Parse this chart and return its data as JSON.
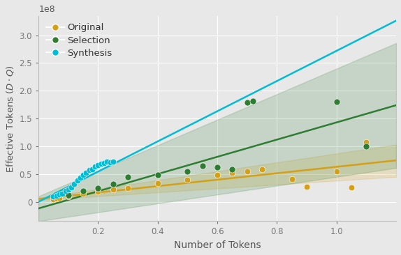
{
  "xlabel": "Number of Tokens",
  "ylabel": "Effective Tokens $(D \\cdot Q)$",
  "xlim": [
    0,
    12000000000.0
  ],
  "ylim": [
    -35000000.0,
    335000000.0
  ],
  "background_color": "#e8e8e8",
  "original_scatter_x": [
    500000000.0,
    600000000.0,
    700000000.0,
    1000000000.0,
    1500000000.0,
    2000000000.0,
    2500000000.0,
    3000000000.0,
    4000000000.0,
    5000000000.0,
    6000000000.0,
    6500000000.0,
    7000000000.0,
    7500000000.0,
    8500000000.0,
    9000000000.0,
    10000000000.0,
    10500000000.0,
    11000000000.0
  ],
  "original_scatter_y": [
    5000000.0,
    6000000.0,
    7000000.0,
    10000000.0,
    14000000.0,
    18000000.0,
    22000000.0,
    24000000.0,
    33000000.0,
    40000000.0,
    48000000.0,
    52000000.0,
    55000000.0,
    58000000.0,
    41000000.0,
    27000000.0,
    55000000.0,
    26000000.0,
    107000000.0
  ],
  "original_color": "#d4a017",
  "original_slope": 0.0058,
  "original_intercept": 5000000.0,
  "original_band_low_slope": 0.0035,
  "original_band_low_intercept": 3000000.0,
  "original_band_high_slope": 0.008,
  "original_band_high_intercept": 7000000.0,
  "selection_scatter_x": [
    1000000000.0,
    1500000000.0,
    2000000000.0,
    2500000000.0,
    3000000000.0,
    4000000000.0,
    5000000000.0,
    5500000000.0,
    6000000000.0,
    6500000000.0,
    7000000000.0,
    7200000000.0,
    10000000000.0,
    11000000000.0
  ],
  "selection_scatter_y": [
    12000000.0,
    20000000.0,
    25000000.0,
    32000000.0,
    45000000.0,
    48000000.0,
    55000000.0,
    65000000.0,
    62000000.0,
    58000000.0,
    179000000.0,
    182000000.0,
    180000000.0,
    100000000.0
  ],
  "selection_color": "#2e7d32",
  "selection_slope": 0.0155,
  "selection_intercept": -12000000.0,
  "selection_band_low_slope": 0.008,
  "selection_band_low_intercept": -35000000.0,
  "selection_band_high_slope": 0.023,
  "selection_band_high_intercept": 10000000.0,
  "synthesis_scatter_x": [
    500000000.0,
    600000000.0,
    700000000.0,
    800000000.0,
    900000000.0,
    1000000000.0,
    1100000000.0,
    1200000000.0,
    1300000000.0,
    1400000000.0,
    1500000000.0,
    1600000000.0,
    1700000000.0,
    1800000000.0,
    1900000000.0,
    2000000000.0,
    2100000000.0,
    2200000000.0,
    2300000000.0,
    2400000000.0,
    2500000000.0
  ],
  "synthesis_scatter_y": [
    9000000.0,
    11000000.0,
    13000000.0,
    15000000.0,
    19000000.0,
    22000000.0,
    26000000.0,
    32000000.0,
    38000000.0,
    43000000.0,
    48000000.0,
    52000000.0,
    57000000.0,
    59000000.0,
    63000000.0,
    66000000.0,
    68000000.0,
    70000000.0,
    72000000.0,
    71000000.0,
    72000000.0
  ],
  "synthesis_color": "#00bcd4",
  "synthesis_slope": 0.0272,
  "synthesis_intercept": 0.0,
  "legend_labels": [
    "Original",
    "Selection",
    "Synthesis"
  ],
  "legend_colors": [
    "#d4a017",
    "#2e7d32",
    "#00bcd4"
  ],
  "legend_marker_colors": [
    "#d4a017",
    "#2e7d32",
    "#00bcd4"
  ]
}
